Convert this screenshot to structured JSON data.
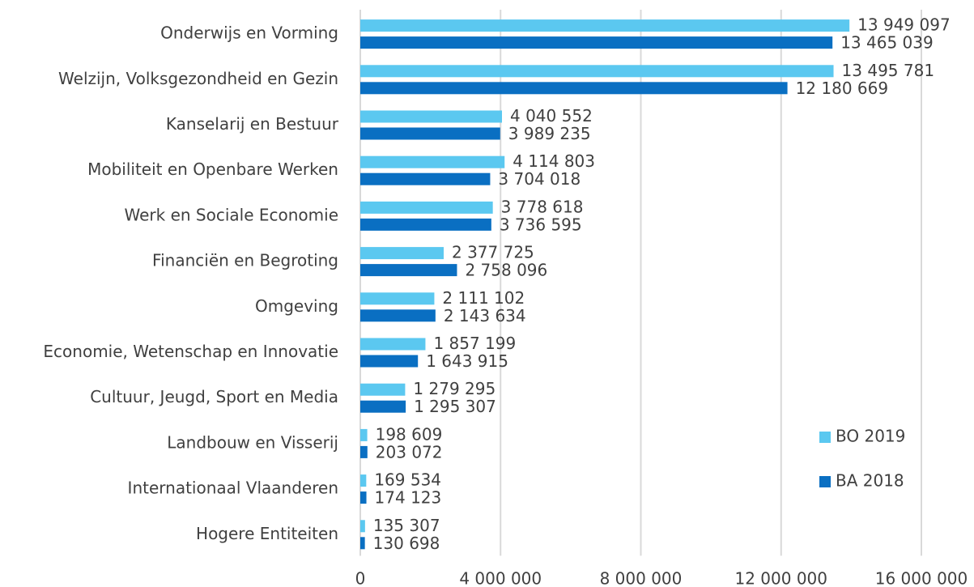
{
  "chart_data": {
    "type": "bar",
    "orientation": "horizontal",
    "categories": [
      "Onderwijs en Vorming",
      "Welzijn, Volksgezondheid en Gezin",
      "Kanselarij en Bestuur",
      "Mobiliteit en Openbare Werken",
      "Werk en Sociale Economie",
      "Financiën en Begroting",
      "Omgeving",
      "Economie, Wetenschap en Innovatie",
      "Cultuur, Jeugd, Sport en Media",
      "Landbouw en Visserij",
      "Internationaal Vlaanderen",
      "Hogere Entiteiten"
    ],
    "series": [
      {
        "name": "BO 2019",
        "color": "#5bc8f0",
        "values": [
          13949097,
          13495781,
          4040552,
          4114803,
          3778618,
          2377725,
          2111102,
          1857199,
          1279295,
          198609,
          169534,
          135307
        ],
        "value_labels": [
          "13 949 097",
          "13 495 781",
          "4 040 552",
          "4 114 803",
          "3 778 618",
          "2 377 725",
          "2 111 102",
          "1 857 199",
          "1 279 295",
          "198 609",
          "169 534",
          "135 307"
        ]
      },
      {
        "name": "BA 2018",
        "color": "#0a6fc2",
        "values": [
          13465039,
          12180669,
          3989235,
          3704018,
          3736595,
          2758096,
          2143634,
          1643915,
          1295307,
          203072,
          174123,
          130698
        ],
        "value_labels": [
          "13 465 039",
          "12 180 669",
          "3 989 235",
          "3 704 018",
          "3 736 595",
          "2 758 096",
          "2 143 634",
          "1 643 915",
          "1 295 307",
          "203 072",
          "174 123",
          "130 698"
        ]
      }
    ],
    "xlim": [
      0,
      16000000
    ],
    "xticks": [
      0,
      {
        "value": 4000000,
        "label": "4 000 000"
      },
      {
        "value": 8000000,
        "label": "8 000 000"
      },
      {
        "value": 12000000,
        "label": "12 000 000"
      },
      {
        "value": 16000000,
        "label": "16 000 000"
      }
    ],
    "grid": true,
    "legend": "right"
  }
}
